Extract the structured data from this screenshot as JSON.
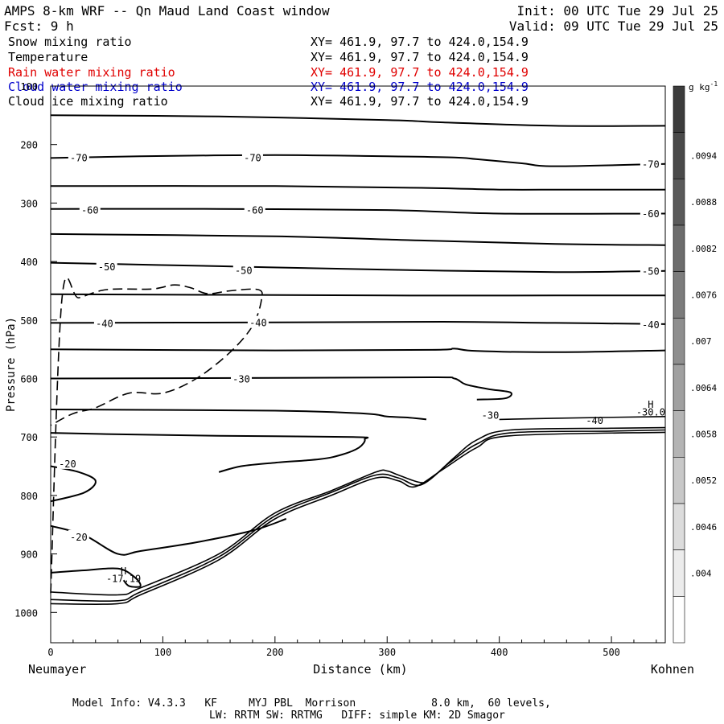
{
  "header": {
    "title": "AMPS 8-km WRF -- Qn Maud Land Coast window",
    "init": "Init: 00 UTC Tue 29 Jul 25",
    "fcst": "Fcst:    9 h",
    "valid": "Valid: 09 UTC Tue 29 Jul 25"
  },
  "fields": [
    {
      "name": "Snow mixing ratio",
      "xy": "XY= 461.9, 97.7 to 424.0,154.9",
      "color": "#000000"
    },
    {
      "name": "Temperature",
      "xy": "XY= 461.9, 97.7 to 424.0,154.9",
      "color": "#000000"
    },
    {
      "name": "Rain water mixing ratio",
      "xy": "XY= 461.9, 97.7 to 424.0,154.9",
      "color": "#e00000"
    },
    {
      "name": "Cloud water mixing ratio",
      "xy": "XY= 461.9, 97.7 to 424.0,154.9",
      "color": "#0000cc"
    },
    {
      "name": "Cloud ice mixing ratio",
      "xy": "XY= 461.9, 97.7 to 424.0,154.9",
      "color": "#000000"
    }
  ],
  "chart_data": {
    "type": "contour",
    "xlabel": "Distance (km)",
    "ylabel": "Pressure (hPa)",
    "xlim": [
      0,
      548
    ],
    "ylim": [
      1050,
      100
    ],
    "x_ticks": [
      0,
      100,
      200,
      300,
      400,
      500
    ],
    "x_ticks_labels": [
      "0",
      "100",
      "200",
      "300",
      "400",
      "500"
    ],
    "y_ticks": [
      100,
      200,
      300,
      400,
      500,
      600,
      700,
      800,
      900,
      1000
    ],
    "y_ticks_labels": [
      "100",
      "200",
      "300",
      "400",
      "500",
      "600",
      "700",
      "800",
      "900",
      "1000"
    ],
    "left_endpoint": "Neumayer",
    "right_endpoint": "Kohnen",
    "temperature_contours": [
      {
        "points": [
          [
            0,
            150
          ],
          [
            150,
            152
          ],
          [
            300,
            158
          ],
          [
            350,
            162
          ],
          [
            450,
            168
          ],
          [
            548,
            168
          ]
        ]
      },
      {
        "label": "-70",
        "points": [
          [
            0,
            223
          ],
          [
            80,
            220
          ],
          [
            200,
            218
          ],
          [
            300,
            220
          ],
          [
            360,
            222
          ],
          [
            380,
            225
          ],
          [
            420,
            232
          ],
          [
            450,
            237
          ],
          [
            548,
            233
          ]
        ],
        "label_positions": [
          [
            25,
            222
          ],
          [
            180,
            222
          ],
          [
            535,
            233
          ]
        ]
      },
      {
        "points": [
          [
            0,
            271
          ],
          [
            200,
            271
          ],
          [
            330,
            274
          ],
          [
            400,
            277
          ],
          [
            460,
            277
          ],
          [
            548,
            277
          ]
        ]
      },
      {
        "label": "-60",
        "points": [
          [
            0,
            310
          ],
          [
            150,
            310
          ],
          [
            300,
            312
          ],
          [
            400,
            318
          ],
          [
            548,
            318
          ]
        ],
        "label_positions": [
          [
            35,
            311
          ],
          [
            182,
            311
          ],
          [
            535,
            317
          ]
        ]
      },
      {
        "points": [
          [
            0,
            353
          ],
          [
            200,
            357
          ],
          [
            330,
            364
          ],
          [
            450,
            370
          ],
          [
            548,
            372
          ]
        ]
      },
      {
        "label": "-50",
        "points": [
          [
            0,
            402
          ],
          [
            150,
            408
          ],
          [
            300,
            414
          ],
          [
            450,
            418
          ],
          [
            548,
            416
          ]
        ],
        "label_positions": [
          [
            50,
            408
          ],
          [
            172,
            414
          ],
          [
            535,
            416
          ]
        ]
      },
      {
        "points": [
          [
            0,
            456
          ],
          [
            150,
            457
          ],
          [
            300,
            458
          ],
          [
            450,
            458
          ],
          [
            548,
            458
          ]
        ]
      },
      {
        "label": "-40",
        "points": [
          [
            0,
            505
          ],
          [
            200,
            504
          ],
          [
            350,
            503
          ],
          [
            450,
            505
          ],
          [
            548,
            507
          ]
        ],
        "label_positions": [
          [
            48,
            505
          ],
          [
            185,
            504
          ],
          [
            535,
            507
          ]
        ]
      },
      {
        "points": [
          [
            0,
            550
          ],
          [
            200,
            552
          ],
          [
            340,
            551
          ],
          [
            360,
            549
          ],
          [
            380,
            553
          ],
          [
            450,
            555
          ],
          [
            548,
            552
          ]
        ]
      },
      {
        "label": "-30",
        "points": [
          [
            0,
            600
          ],
          [
            200,
            599
          ],
          [
            340,
            598
          ],
          [
            360,
            600
          ],
          [
            370,
            610
          ],
          [
            390,
            618
          ],
          [
            410,
            624
          ],
          [
            405,
            634
          ],
          [
            380,
            636
          ]
        ],
        "label_positions": [
          [
            170,
            600
          ]
        ]
      },
      {
        "points": [
          [
            0,
            653
          ],
          [
            200,
            655
          ],
          [
            280,
            660
          ],
          [
            300,
            665
          ],
          [
            320,
            667
          ],
          [
            335,
            670
          ]
        ]
      },
      {
        "points": [
          [
            0,
            693
          ],
          [
            50,
            695
          ],
          [
            150,
            698
          ],
          [
            270,
            700
          ],
          [
            280,
            704
          ],
          [
            275,
            718
          ],
          [
            260,
            730
          ],
          [
            240,
            738
          ],
          [
            200,
            744
          ],
          [
            170,
            750
          ],
          [
            150,
            760
          ]
        ]
      },
      {
        "label": "-20",
        "points": [
          [
            0,
            810
          ],
          [
            30,
            795
          ],
          [
            40,
            775
          ],
          [
            25,
            760
          ],
          [
            0,
            750
          ]
        ],
        "label_positions": [
          [
            15,
            745
          ]
        ]
      },
      {
        "label": "-20",
        "points": [
          [
            0,
            852
          ],
          [
            30,
            868
          ],
          [
            60,
            900
          ],
          [
            80,
            895
          ],
          [
            130,
            880
          ],
          [
            180,
            860
          ],
          [
            210,
            840
          ]
        ],
        "label_positions": [
          [
            25,
            870
          ]
        ]
      },
      {
        "points": [
          [
            0,
            932
          ],
          [
            30,
            928
          ],
          [
            60,
            925
          ],
          [
            75,
            940
          ],
          [
            80,
            955
          ],
          [
            70,
            955
          ],
          [
            65,
            945
          ]
        ]
      }
    ],
    "terrain_lines": [
      {
        "points": [
          [
            0,
            965
          ],
          [
            60,
            970
          ],
          [
            80,
            958
          ],
          [
            150,
            900
          ],
          [
            200,
            830
          ],
          [
            250,
            792
          ],
          [
            290,
            760
          ],
          [
            300,
            758
          ],
          [
            310,
            765
          ],
          [
            330,
            778
          ],
          [
            340,
            770
          ],
          [
            360,
            735
          ],
          [
            380,
            705
          ],
          [
            410,
            688
          ],
          [
            500,
            685
          ],
          [
            548,
            684
          ]
        ]
      },
      {
        "points": [
          [
            0,
            978
          ],
          [
            60,
            980
          ],
          [
            80,
            965
          ],
          [
            150,
            905
          ],
          [
            200,
            835
          ],
          [
            250,
            795
          ],
          [
            290,
            765
          ],
          [
            310,
            770
          ],
          [
            330,
            782
          ],
          [
            355,
            745
          ],
          [
            380,
            712
          ],
          [
            410,
            693
          ],
          [
            500,
            690
          ],
          [
            548,
            688
          ]
        ]
      },
      {
        "points": [
          [
            0,
            985
          ],
          [
            60,
            985
          ],
          [
            80,
            970
          ],
          [
            150,
            910
          ],
          [
            200,
            840
          ],
          [
            250,
            800
          ],
          [
            290,
            770
          ],
          [
            310,
            775
          ],
          [
            325,
            785
          ],
          [
            350,
            755
          ],
          [
            380,
            718
          ],
          [
            410,
            698
          ],
          [
            548,
            692
          ]
        ]
      },
      {
        "points": [
          [
            400,
            670
          ],
          [
            450,
            668
          ],
          [
            548,
            665
          ]
        ]
      }
    ],
    "dashed_contour": {
      "points": [
        [
          0,
          967
        ],
        [
          10,
          465
        ],
        [
          25,
          462
        ],
        [
          50,
          448
        ],
        [
          90,
          447
        ],
        [
          110,
          440
        ],
        [
          125,
          445
        ],
        [
          140,
          455
        ],
        [
          160,
          450
        ],
        [
          185,
          448
        ],
        [
          188,
          465
        ],
        [
          180,
          510
        ],
        [
          160,
          555
        ],
        [
          130,
          600
        ],
        [
          100,
          625
        ],
        [
          70,
          625
        ],
        [
          40,
          650
        ],
        [
          20,
          660
        ],
        [
          0,
          680
        ]
      ]
    },
    "annotations": [
      {
        "text": "H",
        "x": 65,
        "y": 935
      },
      {
        "text": "-17.19",
        "x": 65,
        "y": 948
      },
      {
        "text": "H",
        "x": 535,
        "y": 650
      },
      {
        "text": "-30.0",
        "x": 535,
        "y": 663
      },
      {
        "text": "-30",
        "x": 392,
        "y": 669
      },
      {
        "text": "-40",
        "x": 485,
        "y": 678
      }
    ]
  },
  "colorbar": {
    "unit": "g kg",
    "unit_sup": "-1",
    "labels": [
      ".0094",
      ".0088",
      ".0082",
      ".0076",
      ".007",
      ".0064",
      ".0058",
      ".0052",
      ".0046",
      ".004"
    ],
    "colors": [
      "#3c3c3c",
      "#4a4a4a",
      "#5a5a5a",
      "#6c6c6c",
      "#7c7c7c",
      "#8e8e8e",
      "#a0a0a0",
      "#b4b4b4",
      "#c8c8c8",
      "#dcdcdc",
      "#ececec",
      "#ffffff"
    ]
  },
  "footer": {
    "line1": "Model Info: V4.3.3   KF     MYJ PBL  Morrison            8.0 km,  60 levels,",
    "line2": "LW: RRTM SW: RRTMG   DIFF: simple KM: 2D Smagor"
  }
}
